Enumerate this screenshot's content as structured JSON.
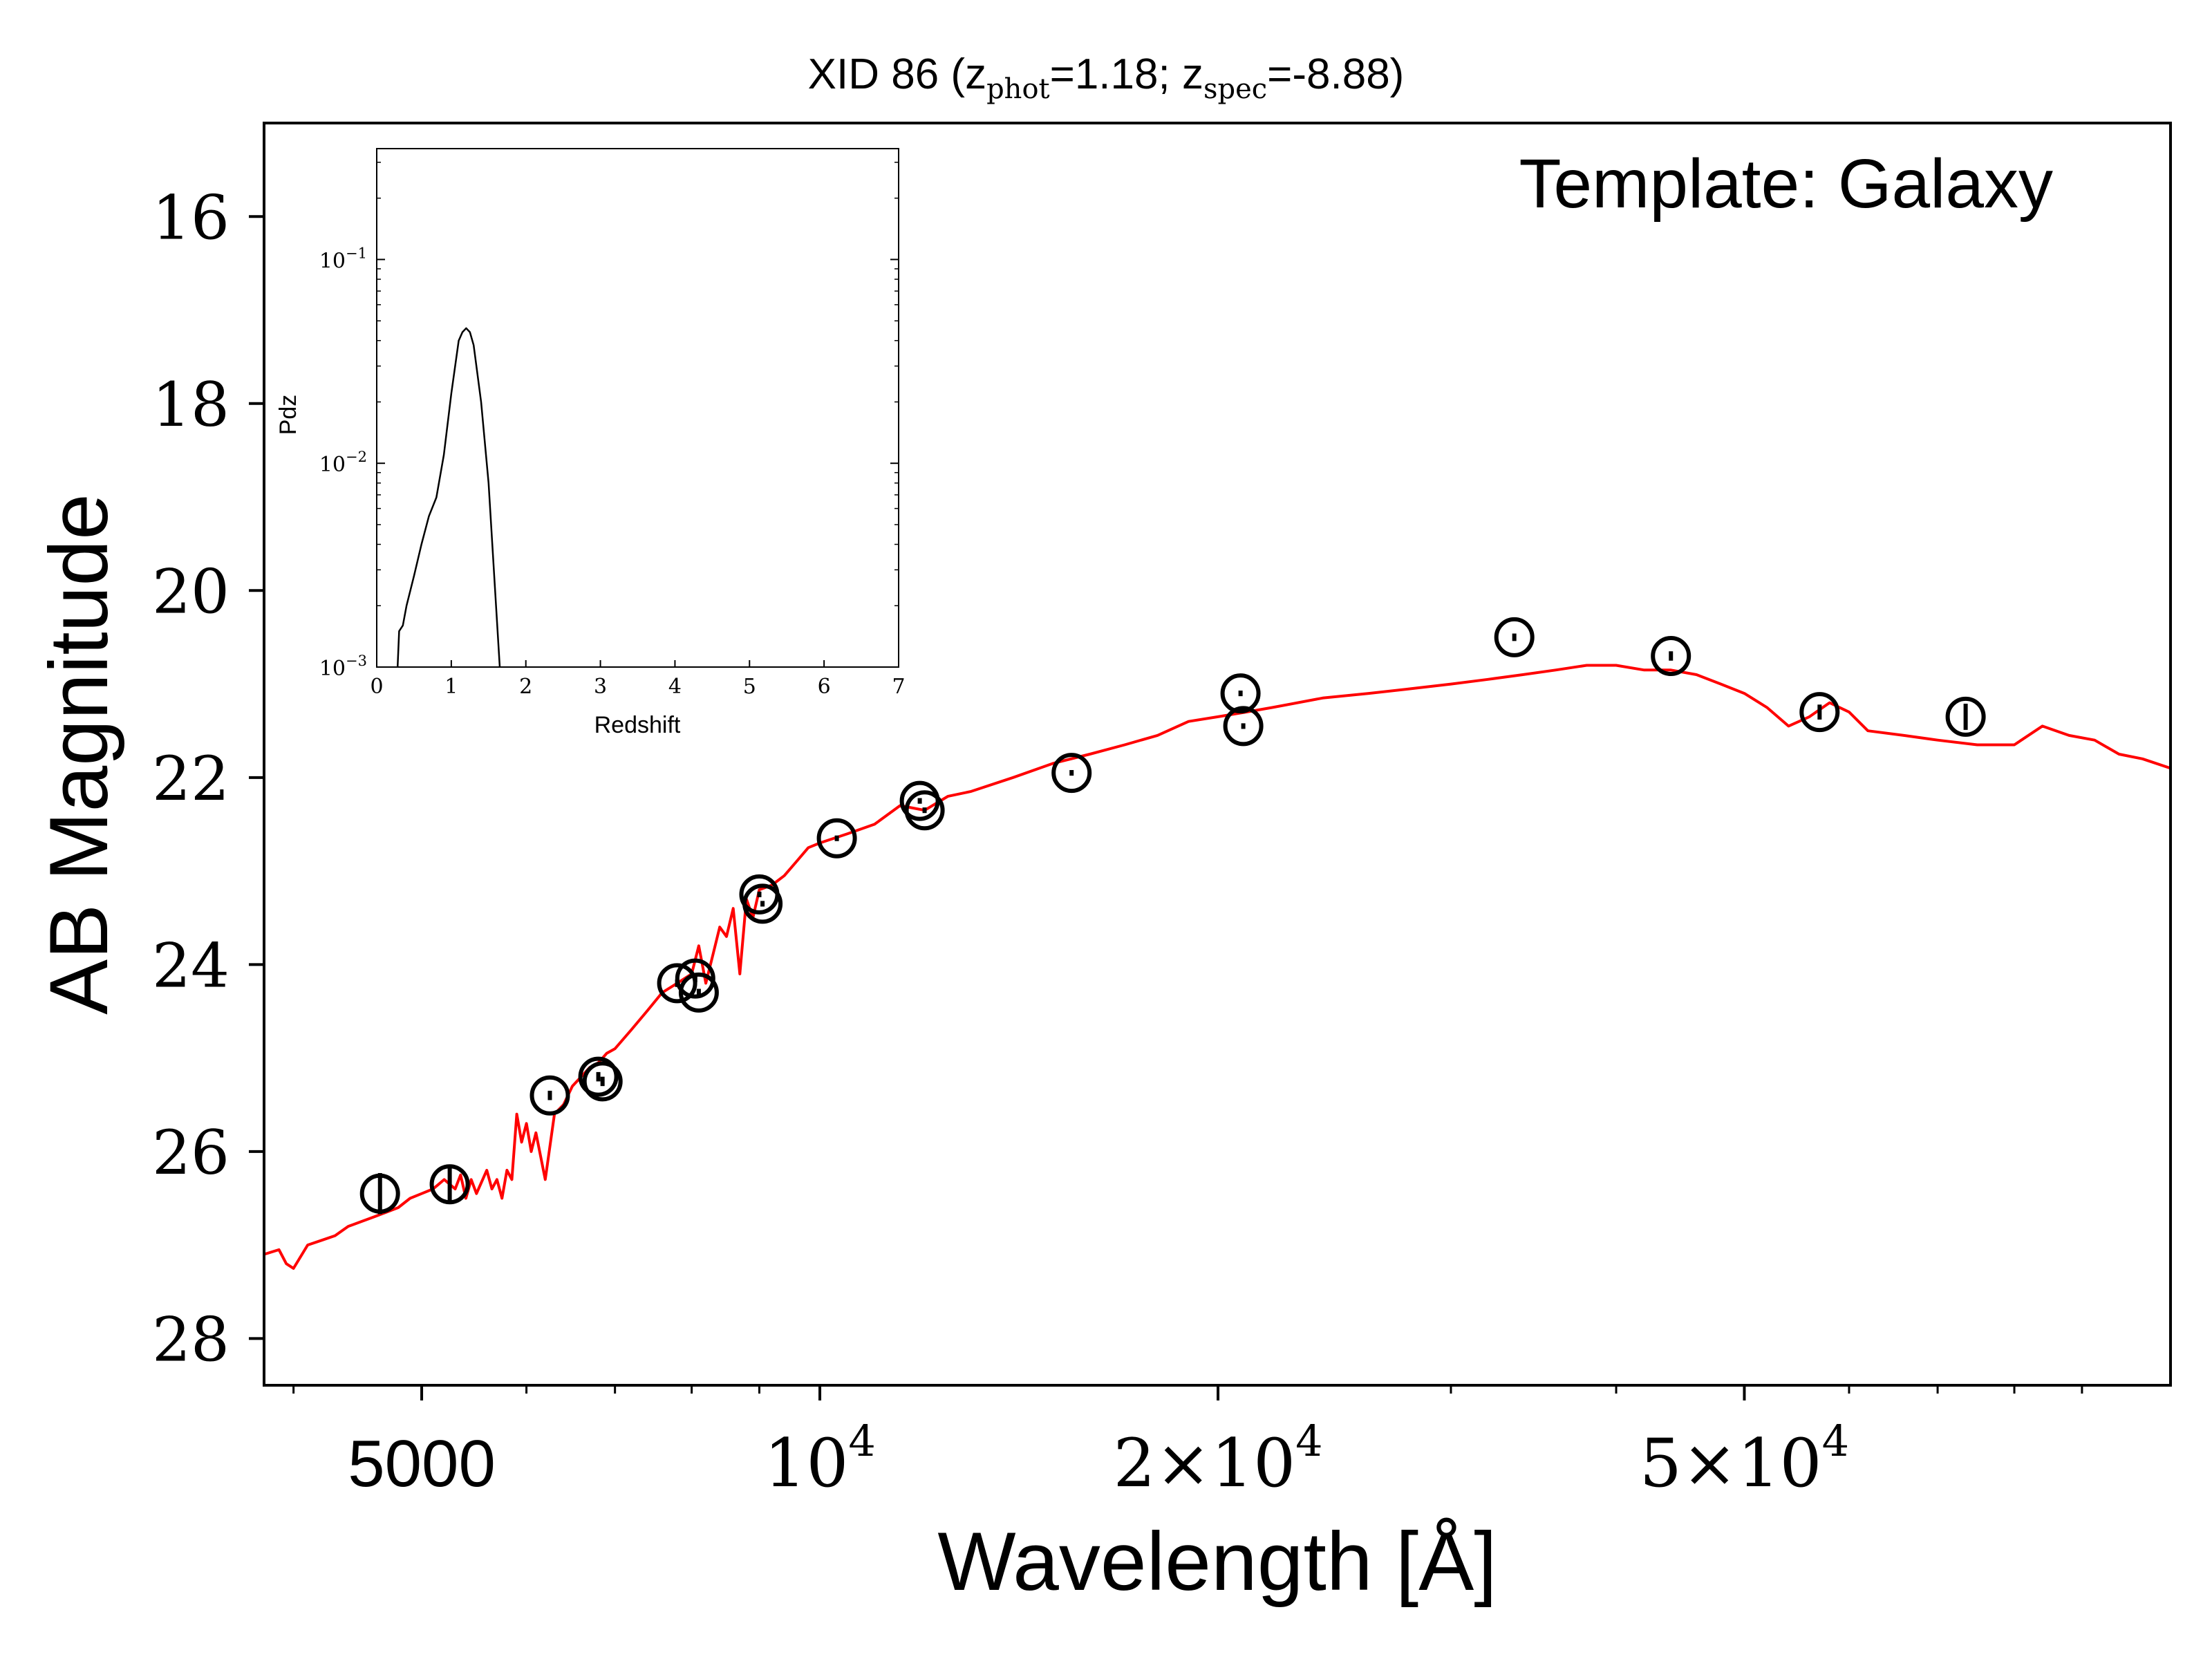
{
  "chart_data": [
    {
      "type": "line",
      "title_prefix": "XID 86 (z",
      "title_sub1": "phot",
      "title_mid": "=1.18; z",
      "title_sub2": "spec",
      "title_suffix": "=-8.88)",
      "xlabel": "Wavelength [Å]",
      "ylabel": "AB Magnitude",
      "annotation": "Template: Galaxy",
      "xscale": "log",
      "xlim": [
        3800,
        105000
      ],
      "ylim": [
        28.5,
        15.0
      ],
      "y_inverted": true,
      "grid": false,
      "x_ticks": [
        {
          "value": 5000,
          "base": "5000",
          "exp": ""
        },
        {
          "value": 10000,
          "base": "10",
          "exp": "4"
        },
        {
          "value": 20000,
          "base": "2×10",
          "exp": "4"
        },
        {
          "value": 50000,
          "base": "5×10",
          "exp": "4"
        }
      ],
      "y_ticks": [
        16,
        18,
        20,
        22,
        24,
        26,
        28
      ],
      "colors": {
        "template": "#ff0000",
        "points": "#000000"
      },
      "series": [
        {
          "x": [
            3800,
            3900,
            3950,
            4000,
            4100,
            4200,
            4300,
            4400,
            4500,
            4600,
            4700,
            4800,
            4900,
            5000,
            5100,
            5200,
            5300,
            5350,
            5400,
            5450,
            5500,
            5600,
            5650,
            5700,
            5750,
            5800,
            5850,
            5900,
            5950,
            6000,
            6050,
            6100,
            6200,
            6300,
            6400,
            6500,
            6600,
            6700,
            6800,
            6900,
            7000,
            7200,
            7400,
            7600,
            7800,
            8000,
            8100,
            8200,
            8300,
            8400,
            8500,
            8600,
            8700,
            8800,
            8900,
            9000,
            9200,
            9400,
            9600,
            9800,
            10000,
            10500,
            11000,
            11500,
            12000,
            12500,
            13000,
            14000,
            15000,
            16000,
            17000,
            18000,
            19000,
            20000,
            21000,
            22000,
            24000,
            26000,
            28000,
            30000,
            32000,
            34000,
            36000,
            38000,
            40000,
            42000,
            44000,
            46000,
            48000,
            50000,
            52000,
            54000,
            56000,
            58000,
            60000,
            62000,
            66000,
            70000,
            75000,
            80000,
            84000,
            88000,
            92000,
            96000,
            100000,
            105000
          ],
          "values": [
            27.1,
            27.05,
            27.2,
            27.25,
            27.0,
            26.95,
            26.9,
            26.8,
            26.75,
            26.7,
            26.65,
            26.6,
            26.5,
            26.45,
            26.4,
            26.3,
            26.4,
            26.25,
            26.5,
            26.3,
            26.45,
            26.2,
            26.4,
            26.3,
            26.5,
            26.2,
            26.3,
            25.6,
            25.9,
            25.7,
            26.0,
            25.8,
            26.3,
            25.6,
            25.5,
            25.3,
            25.2,
            25.1,
            25.05,
            24.95,
            24.9,
            24.7,
            24.5,
            24.3,
            24.2,
            24.1,
            23.8,
            24.2,
            23.9,
            23.6,
            23.7,
            23.4,
            24.1,
            23.3,
            23.5,
            23.2,
            23.15,
            23.05,
            22.9,
            22.75,
            22.7,
            22.6,
            22.5,
            22.3,
            22.35,
            22.2,
            22.15,
            22.0,
            21.85,
            21.75,
            21.65,
            21.55,
            21.4,
            21.35,
            21.3,
            21.25,
            21.15,
            21.1,
            21.05,
            21.0,
            20.95,
            20.9,
            20.85,
            20.8,
            20.8,
            20.85,
            20.85,
            20.9,
            21.0,
            21.1,
            21.25,
            21.45,
            21.35,
            21.2,
            21.3,
            21.5,
            21.55,
            21.6,
            21.65,
            21.65,
            21.45,
            21.55,
            21.6,
            21.75,
            21.8,
            21.9
          ]
        },
        {
          "x": [
            4650,
            5250,
            6250,
            6800,
            6850,
            7800,
            8050,
            8100,
            9000,
            9050,
            10300,
            11900,
            12000,
            15500,
            20800,
            20900,
            33500,
            44000,
            57000,
            73500
          ],
          "values": [
            26.45,
            26.35,
            25.4,
            25.2,
            25.25,
            24.2,
            24.15,
            24.3,
            23.25,
            23.35,
            22.65,
            22.25,
            22.35,
            21.95,
            21.1,
            21.45,
            20.5,
            20.7,
            21.3,
            21.35
          ],
          "errors": [
            0.22,
            0.18,
            0.05,
            0.05,
            0.05,
            0.04,
            0.04,
            0.04,
            0.03,
            0.03,
            0.03,
            0.03,
            0.03,
            0.03,
            0.03,
            0.03,
            0.04,
            0.05,
            0.08,
            0.14
          ]
        }
      ]
    },
    {
      "type": "line",
      "xlabel": "Redshift",
      "ylabel": "Pdz",
      "yscale": "log",
      "xlim": [
        0,
        7
      ],
      "ylim": [
        0.001,
        0.35
      ],
      "x_ticks": [
        0,
        1,
        2,
        3,
        4,
        5,
        6,
        7
      ],
      "y_ticks": [
        {
          "value": 0.1,
          "base": "10",
          "exp": "−1"
        },
        {
          "value": 0.01,
          "base": "10",
          "exp": "−2"
        },
        {
          "value": 0.001,
          "base": "10",
          "exp": "−3"
        }
      ],
      "grid": false,
      "colors": {
        "line": "#000000"
      },
      "series": [
        {
          "x": [
            0.28,
            0.3,
            0.35,
            0.4,
            0.5,
            0.6,
            0.7,
            0.8,
            0.9,
            1.0,
            1.1,
            1.15,
            1.2,
            1.25,
            1.3,
            1.4,
            1.5,
            1.6,
            1.65
          ],
          "values": [
            0.001,
            0.0015,
            0.0016,
            0.002,
            0.0028,
            0.004,
            0.0055,
            0.0068,
            0.011,
            0.022,
            0.04,
            0.044,
            0.046,
            0.044,
            0.038,
            0.02,
            0.008,
            0.002,
            0.001
          ]
        }
      ]
    }
  ]
}
